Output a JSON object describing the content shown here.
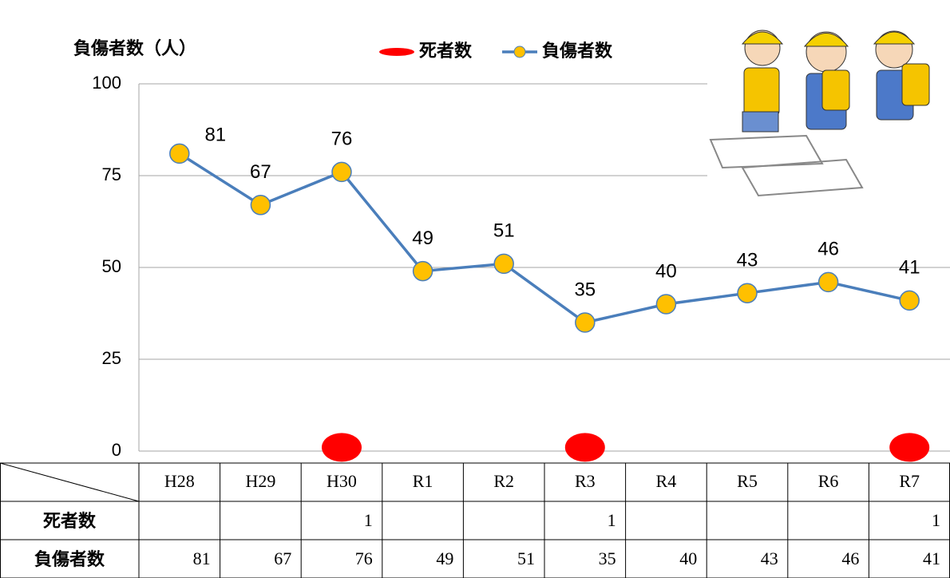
{
  "chart_data": {
    "type": "line",
    "y_label": "負傷者数（人）",
    "categories": [
      "H28",
      "H29",
      "H30",
      "R1",
      "R2",
      "R3",
      "R4",
      "R5",
      "R6",
      "R7"
    ],
    "series": [
      {
        "name": "死者数",
        "color": "#ff0000",
        "marker": "ellipse",
        "values": [
          null,
          null,
          1,
          null,
          null,
          1,
          null,
          null,
          null,
          1
        ]
      },
      {
        "name": "負傷者数",
        "color": "#4a7ebb",
        "marker": "circle",
        "marker_color": "#ffc000",
        "values": [
          81,
          67,
          76,
          49,
          51,
          35,
          40,
          43,
          46,
          41
        ]
      }
    ],
    "ylim": [
      0,
      100
    ],
    "yticks": [
      0,
      25,
      50,
      75,
      100
    ],
    "grid": true,
    "legend": "top"
  }
}
